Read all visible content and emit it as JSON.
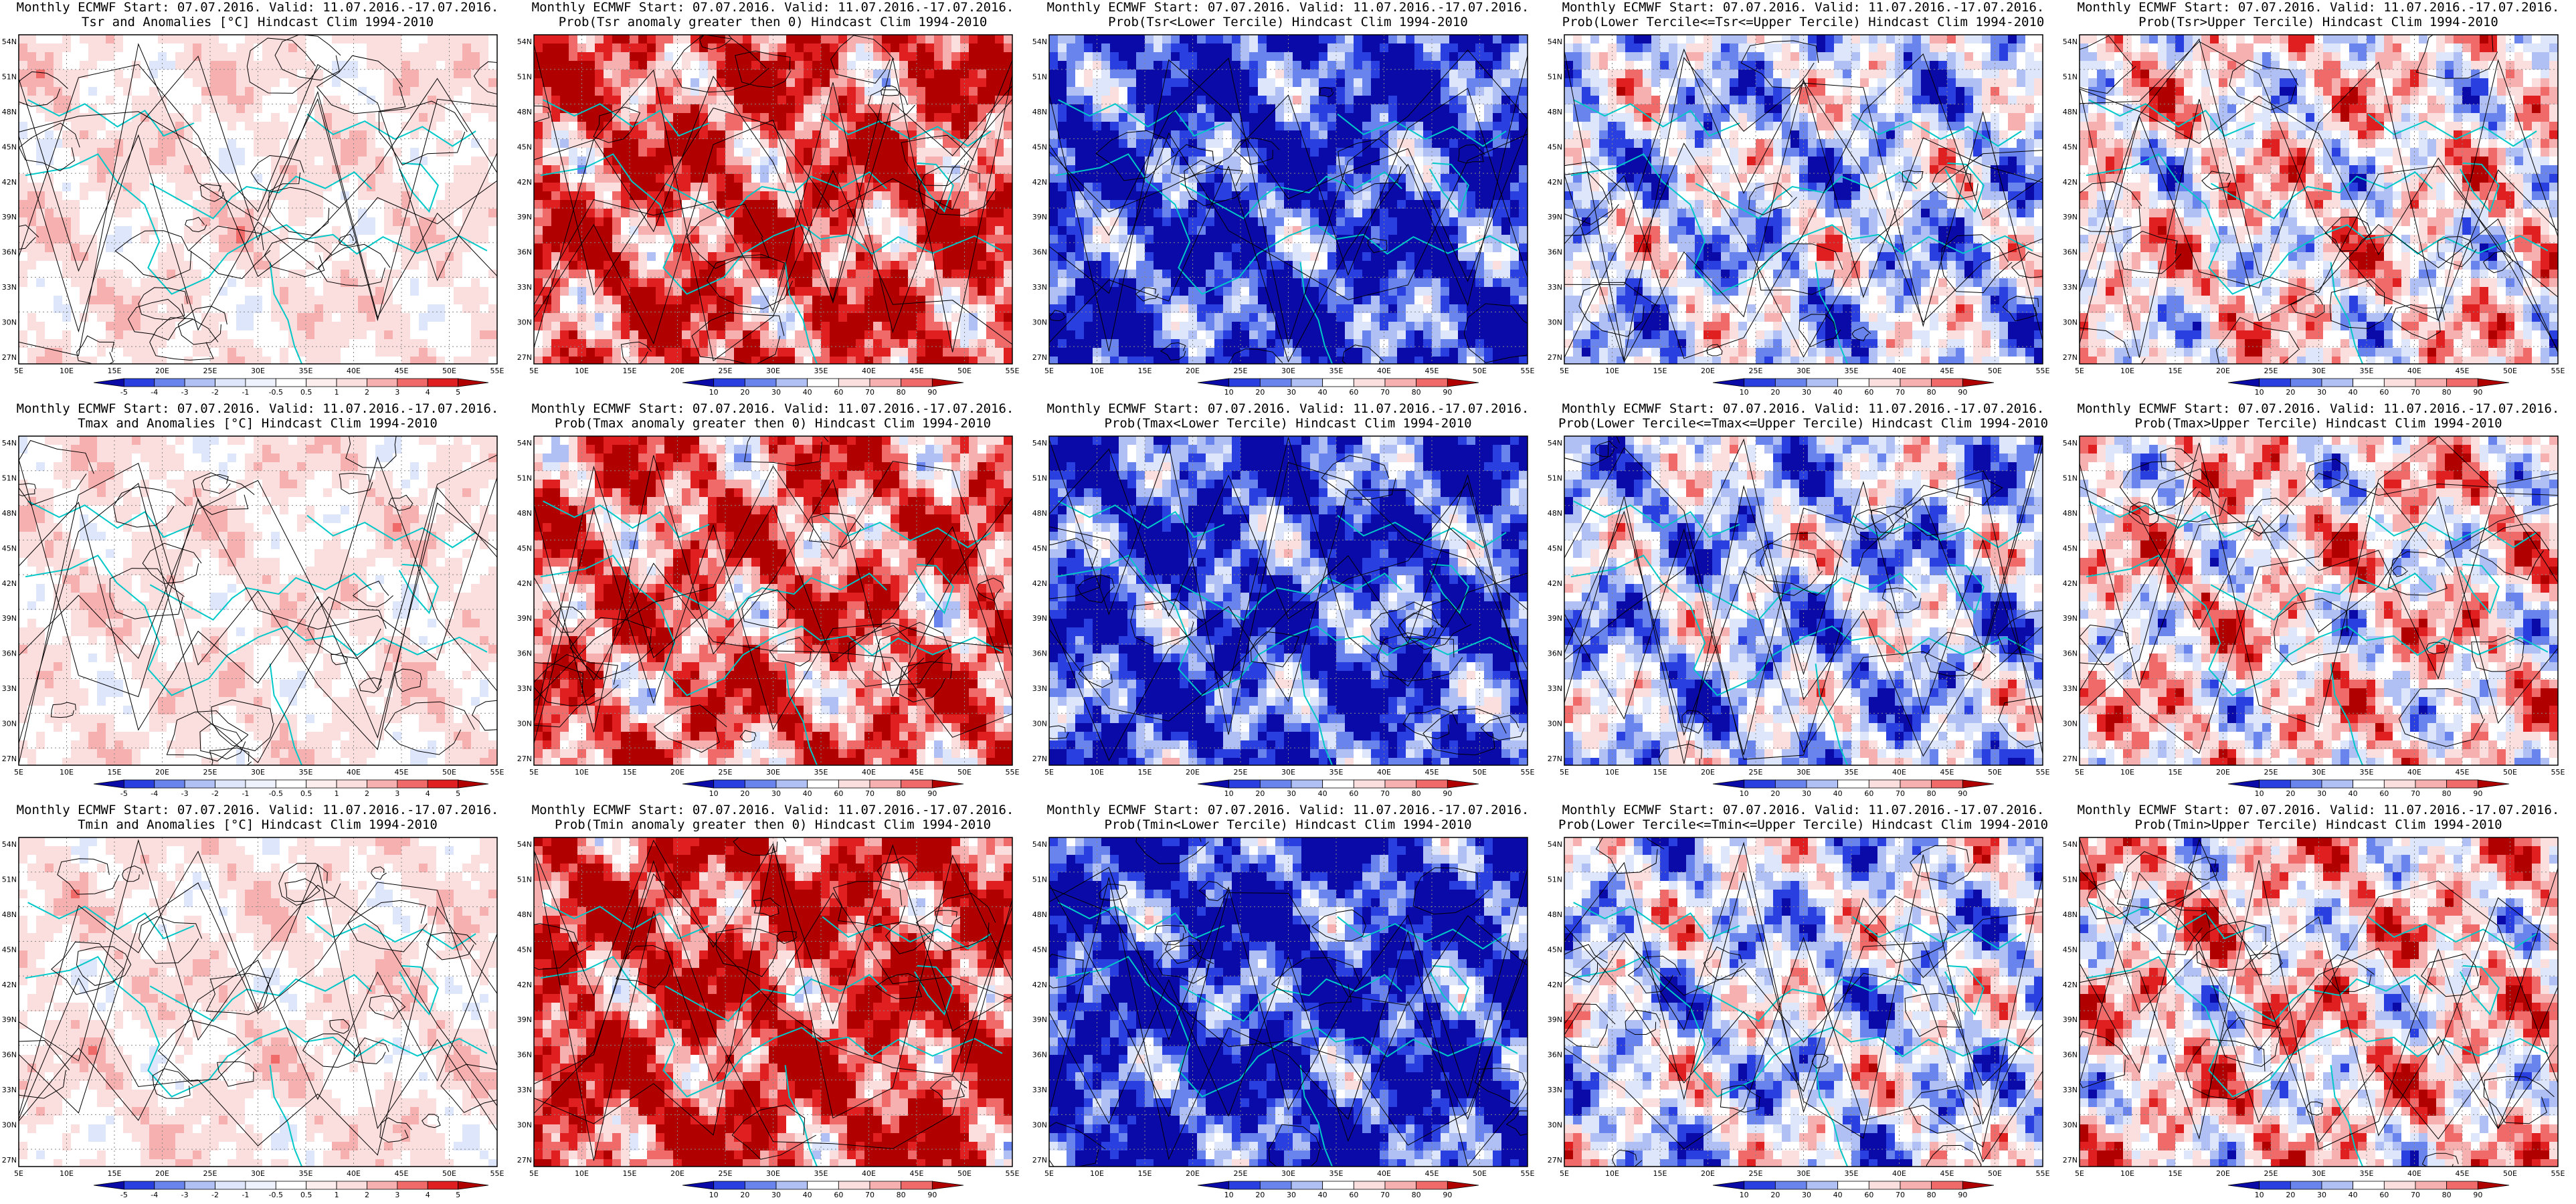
{
  "title_prefix": "Monthly ECMWF Start: 07.07.2016. Valid: 11.07.2016.-17.07.2016.",
  "lat_ticks": [
    "54N",
    "51N",
    "48N",
    "45N",
    "42N",
    "39N",
    "36N",
    "33N",
    "30N",
    "27N"
  ],
  "lon_ticks": [
    "5E",
    "10E",
    "15E",
    "20E",
    "25E",
    "30E",
    "35E",
    "40E",
    "45E",
    "50E",
    "55E"
  ],
  "colors": {
    "dark_red": "#b00000",
    "red": "#e02020",
    "mid_red": "#f06a6a",
    "light_red": "#f7b0b0",
    "pale_red": "#fbdede",
    "white": "#ffffff",
    "pale_blue": "#dee6fb",
    "light_blue": "#b0c0f5",
    "mid_blue": "#6a84ee",
    "blue": "#2a3fe0",
    "dark_blue": "#0a0aa8",
    "coast": "#00c8c8",
    "contour": "#000000"
  },
  "legends": {
    "anomaly": [
      "-5",
      "-4",
      "-3",
      "-2",
      "-1",
      "-0.5",
      "0.5",
      "1",
      "2",
      "3",
      "4",
      "5"
    ],
    "probability": [
      "10",
      "20",
      "30",
      "40",
      "60",
      "70",
      "80",
      "90"
    ]
  },
  "rows": [
    {
      "panels": [
        {
          "kind": "anomaly",
          "title": "Tsr and Anomalies [°C] Hindcast Clim 1994-2010"
        },
        {
          "kind": "probability",
          "bias": 0.7,
          "title": "Prob(Tsr anomaly greater then 0) Hindcast Clim 1994-2010"
        },
        {
          "kind": "probability",
          "bias": -0.85,
          "title": "Prob(Tsr<Lower Tercile) Hindcast Clim 1994-2010"
        },
        {
          "kind": "probability",
          "bias": -0.25,
          "title": "Prob(Lower Tercile<=Tsr<=Upper Tercile) Hindcast Clim 1994-2010"
        },
        {
          "kind": "probability",
          "bias": 0.1,
          "title": "Prob(Tsr>Upper Tercile) Hindcast Clim 1994-2010"
        }
      ]
    },
    {
      "panels": [
        {
          "kind": "anomaly",
          "title": "Tmax and Anomalies [°C] Hindcast Clim 1994-2010"
        },
        {
          "kind": "probability",
          "bias": 0.6,
          "title": "Prob(Tmax anomaly greater then 0) Hindcast Clim 1994-2010"
        },
        {
          "kind": "probability",
          "bias": -0.8,
          "title": "Prob(Tmax<Lower Tercile) Hindcast Clim 1994-2010"
        },
        {
          "kind": "probability",
          "bias": -0.3,
          "title": "Prob(Lower Tercile<=Tmax<=Upper Tercile) Hindcast Clim 1994-2010"
        },
        {
          "kind": "probability",
          "bias": 0.15,
          "title": "Prob(Tmax>Upper Tercile) Hindcast Clim 1994-2010"
        }
      ]
    },
    {
      "panels": [
        {
          "kind": "anomaly",
          "title": "Tmin and Anomalies [°C] Hindcast Clim 1994-2010"
        },
        {
          "kind": "probability",
          "bias": 0.8,
          "title": "Prob(Tmin anomaly greater then 0) Hindcast Clim 1994-2010"
        },
        {
          "kind": "probability",
          "bias": -0.9,
          "title": "Prob(Tmin<Lower Tercile) Hindcast Clim 1994-2010"
        },
        {
          "kind": "probability",
          "bias": -0.2,
          "title": "Prob(Lower Tercile<=Tmin<=Upper Tercile) Hindcast Clim 1994-2010"
        },
        {
          "kind": "probability",
          "bias": 0.2,
          "title": "Prob(Tmin>Upper Tercile) Hindcast Clim 1994-2010"
        }
      ]
    }
  ]
}
